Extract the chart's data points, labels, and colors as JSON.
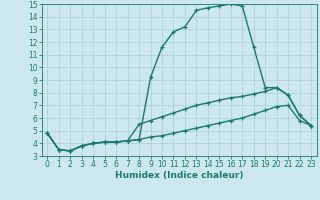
{
  "xlabel": "Humidex (Indice chaleur)",
  "x_values": [
    0,
    1,
    2,
    3,
    4,
    5,
    6,
    7,
    8,
    9,
    10,
    11,
    12,
    13,
    14,
    15,
    16,
    17,
    18,
    19,
    20,
    21,
    22,
    23
  ],
  "line1": [
    4.8,
    3.5,
    3.4,
    3.8,
    4.0,
    4.1,
    4.1,
    4.2,
    4.3,
    9.2,
    11.6,
    12.8,
    13.2,
    14.5,
    14.7,
    14.85,
    15.0,
    14.85,
    11.6,
    8.4,
    8.4,
    7.8,
    6.2,
    5.4
  ],
  "line2": [
    4.8,
    3.5,
    3.4,
    3.8,
    4.0,
    4.1,
    4.1,
    4.2,
    5.5,
    5.8,
    6.1,
    6.4,
    6.7,
    7.0,
    7.2,
    7.4,
    7.6,
    7.7,
    7.9,
    8.1,
    8.4,
    7.8,
    6.2,
    5.4
  ],
  "line3": [
    4.8,
    3.5,
    3.4,
    3.8,
    4.0,
    4.1,
    4.1,
    4.2,
    4.3,
    4.5,
    4.6,
    4.8,
    5.0,
    5.2,
    5.4,
    5.6,
    5.8,
    6.0,
    6.3,
    6.6,
    6.9,
    7.0,
    5.8,
    5.4
  ],
  "line_color": "#1a7a6e",
  "bg_color": "#cce8ec",
  "grid_color": "#aacdd4",
  "ylim": [
    3,
    15
  ],
  "xlim": [
    -0.5,
    23.5
  ],
  "yticks": [
    3,
    4,
    5,
    6,
    7,
    8,
    9,
    10,
    11,
    12,
    13,
    14,
    15
  ],
  "xticks": [
    0,
    1,
    2,
    3,
    4,
    5,
    6,
    7,
    8,
    9,
    10,
    11,
    12,
    13,
    14,
    15,
    16,
    17,
    18,
    19,
    20,
    21,
    22,
    23
  ],
  "marker": "+",
  "markersize": 3.5,
  "linewidth": 1.0,
  "tick_fontsize": 5.5,
  "xlabel_fontsize": 6.5
}
